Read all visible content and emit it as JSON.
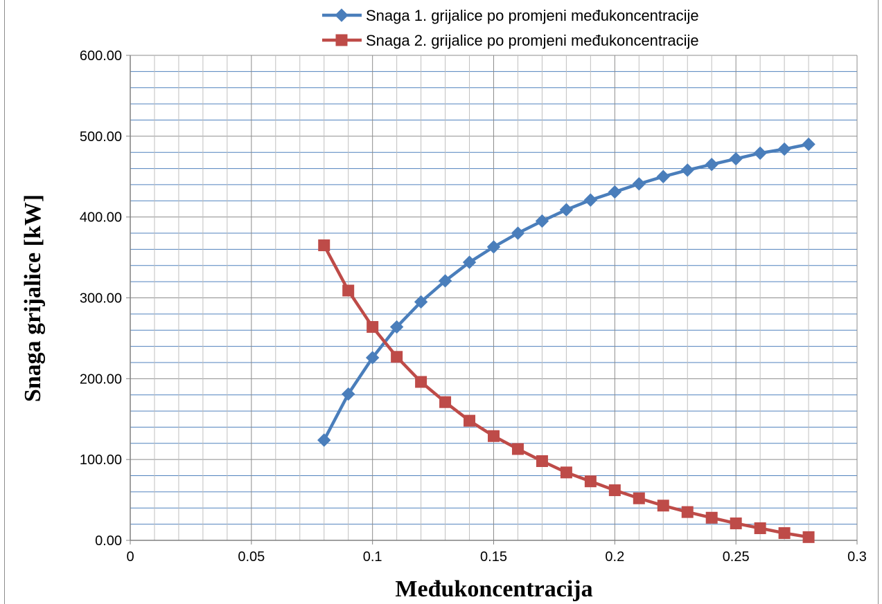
{
  "chart_data": {
    "type": "line",
    "title": "",
    "xlabel": "Međukoncentracija",
    "ylabel": "Snaga grijalice [kW]",
    "xlim": [
      0,
      0.3
    ],
    "ylim": [
      0,
      600
    ],
    "x_ticks": [
      "0",
      "0.05",
      "0.1",
      "0.15",
      "0.2",
      "0.25",
      "0.3"
    ],
    "y_ticks": [
      "0.00",
      "100.00",
      "200.00",
      "300.00",
      "400.00",
      "500.00",
      "600.00"
    ],
    "grid": true,
    "legend_position": "top-right",
    "x": [
      0.08,
      0.09,
      0.1,
      0.11,
      0.12,
      0.13,
      0.14,
      0.15,
      0.16,
      0.17,
      0.18,
      0.19,
      0.2,
      0.21,
      0.22,
      0.23,
      0.24,
      0.25,
      0.26,
      0.27,
      0.28
    ],
    "series": [
      {
        "name": "Snaga  1. grijalice po promjeni međukoncentracije",
        "color": "#4A7EBB",
        "marker": "diamond",
        "values": [
          124,
          181,
          226,
          264,
          295,
          321,
          344,
          363,
          380,
          395,
          409,
          421,
          431,
          441,
          450,
          458,
          465,
          472,
          479,
          484,
          490
        ]
      },
      {
        "name": "Snaga  2. grijalice po promjeni međukoncentracije",
        "color": "#BE4B48",
        "marker": "square",
        "values": [
          365,
          309,
          264,
          227,
          196,
          171,
          148,
          129,
          113,
          98,
          84,
          73,
          62,
          52,
          43,
          35,
          28,
          21,
          15,
          9,
          4
        ]
      }
    ]
  }
}
